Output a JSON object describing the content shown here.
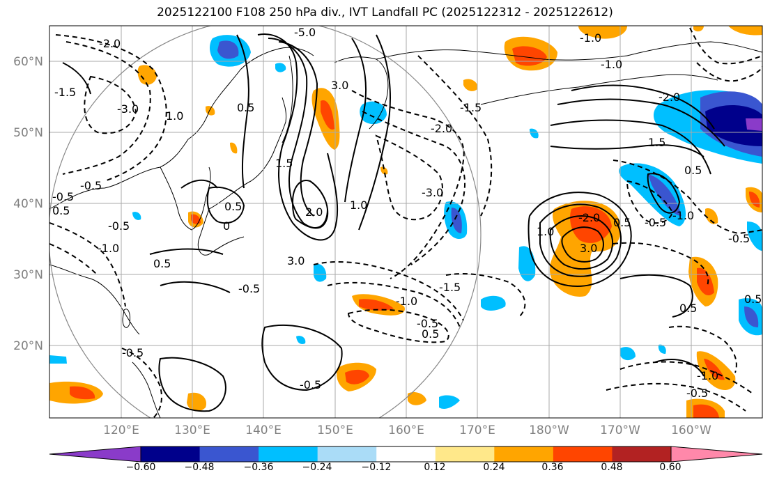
{
  "title": "2025122100 F108 250 hPa div., IVT Landfall PC (2025122312 - 2025122612)",
  "lat_labels": [
    "60°N",
    "50°N",
    "40°N",
    "30°N",
    "20°N"
  ],
  "lon_labels": [
    "120°E",
    "130°E",
    "140°E",
    "150°E",
    "160°E",
    "170°E",
    "180°W",
    "170°W",
    "160°W"
  ],
  "contour_labels": [
    "-5.0",
    "-2.0",
    "-1.5",
    "-3.0",
    "1.0",
    "0.5",
    "-0.5",
    "0.5",
    "-0.5",
    "-1.0",
    "-0.5",
    "0.5",
    "1.5",
    "0",
    "3.0",
    "2.0",
    "1.0",
    "3.0",
    "-0.5",
    "0.5",
    "-1.0",
    "-1.5",
    "-0.5",
    "0.5",
    "-0.5",
    "-0.5",
    "-2.0",
    "-3.0",
    "-1.5",
    "-1.0",
    "-1.0",
    "-2.0",
    "1.5",
    "0.5",
    "-1.0",
    "1.0",
    "3.0",
    "-2.0",
    "0.5",
    "-0.5",
    "-0.5",
    "0.5",
    "-1.0",
    "-0.5",
    "0.5"
  ],
  "colorbar": {
    "ticks": [
      "−0.60",
      "−0.48",
      "−0.36",
      "−0.24",
      "−0.12",
      "0.12",
      "0.24",
      "0.36",
      "0.48",
      "0.60"
    ],
    "colors": [
      "#8a3bc9",
      "#00008b",
      "#3a56d0",
      "#00bfff",
      "#aadcf7",
      "#ffffff",
      "#ffe88a",
      "#ffa500",
      "#ff4500",
      "#b22222",
      "#ff88aa"
    ]
  }
}
